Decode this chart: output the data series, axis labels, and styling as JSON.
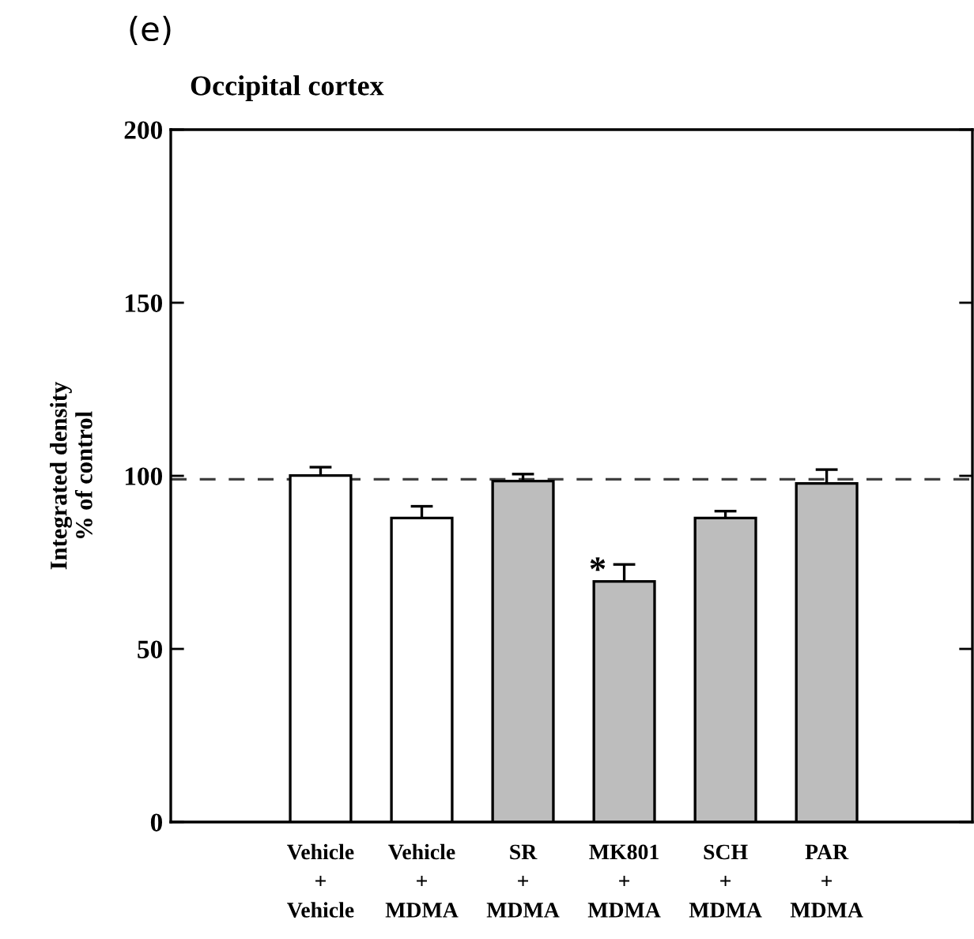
{
  "chart_data": {
    "type": "bar",
    "title": "Occipital cortex",
    "ylabel": "Integrated density\n% of control",
    "categories": [
      "Vehicle\n+\nVehicle",
      "Vehicle\n+\nMDMA",
      "SR\n+\nMDMA",
      "MK801\n+\nMDMA",
      "SCH\n+\nMDMA",
      "PAR\n+\nMDMA"
    ],
    "values": [
      100.1,
      87.8,
      98.5,
      69.5,
      87.8,
      97.8
    ],
    "errors": [
      2.4,
      3.4,
      2.0,
      4.9,
      2.0,
      4.0
    ],
    "colors": [
      "#ffffff",
      "#ffffff",
      "#bdbdbd",
      "#bdbdbd",
      "#bdbdbd",
      "#bdbdbd"
    ],
    "ylim": [
      0,
      200
    ],
    "yticks": [
      0,
      50,
      100,
      150,
      200
    ],
    "ref_lines": [
      {
        "axis": "y",
        "value": 99,
        "color": "#404040",
        "line_style": "dashed"
      }
    ],
    "annotations": [
      "(e)",
      "*"
    ],
    "grid": false,
    "legend": false
  }
}
